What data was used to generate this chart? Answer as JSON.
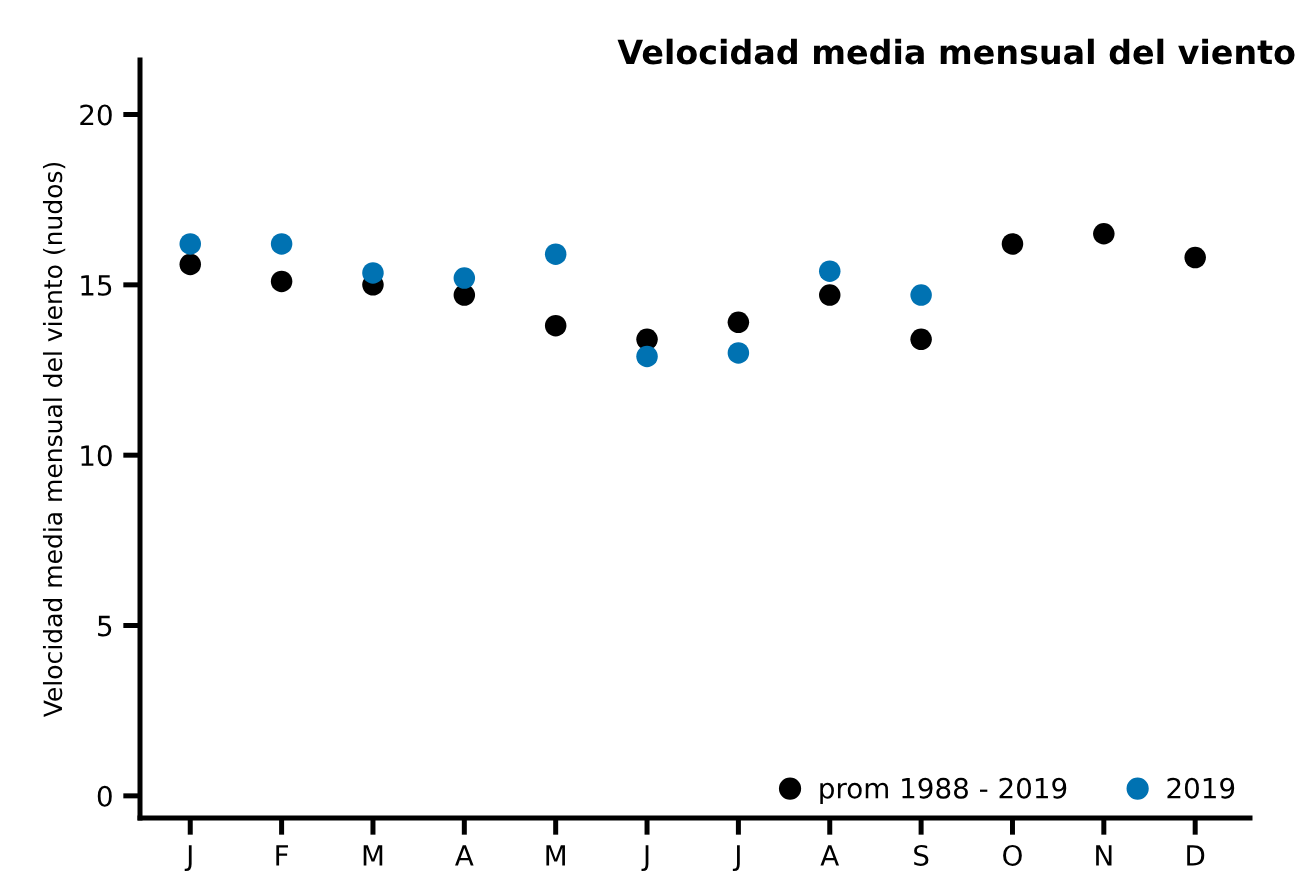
{
  "chart_data": {
    "type": "scatter",
    "title": "Velocidad media mensual del viento",
    "ylabel": "Velocidad media mensual del viento (nudos)",
    "categories": [
      "J",
      "F",
      "M",
      "A",
      "M",
      "J",
      "J",
      "A",
      "S",
      "O",
      "N",
      "D"
    ],
    "series": [
      {
        "name": "prom 1988 - 2019",
        "color": "#000000",
        "values": [
          15.6,
          15.1,
          15.0,
          14.7,
          13.8,
          13.4,
          13.9,
          14.7,
          13.4,
          16.2,
          16.5,
          15.8
        ]
      },
      {
        "name": "2019",
        "color": "#0072b2",
        "values": [
          16.2,
          16.2,
          15.35,
          15.2,
          15.9,
          12.9,
          13.0,
          15.4,
          14.7,
          null,
          null,
          null
        ]
      }
    ],
    "ylim": [
      -0.65,
      21.6
    ],
    "yticks": [
      0,
      5,
      10,
      15,
      20
    ],
    "grid": false,
    "legend": "bottom right",
    "marker": "circle"
  }
}
